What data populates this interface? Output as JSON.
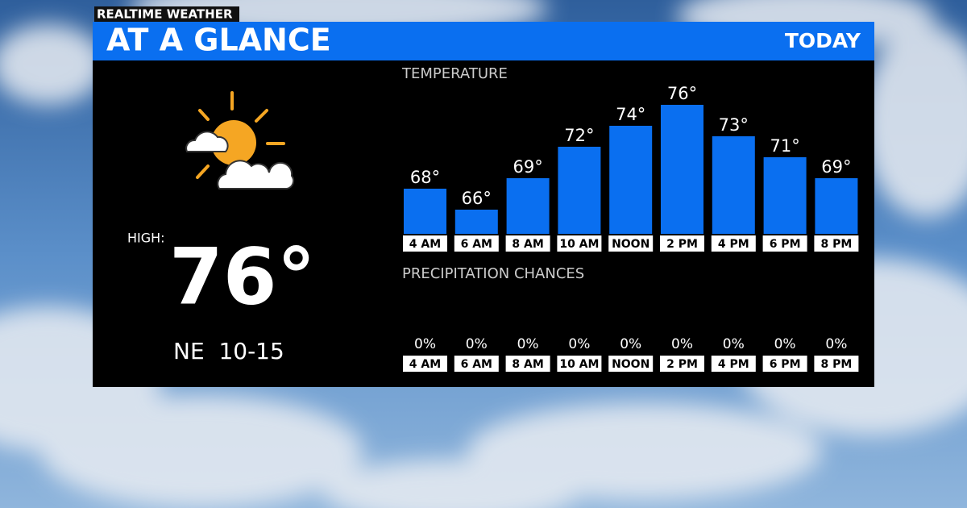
{
  "header": {
    "brand": "REALTIME WEATHER",
    "title": "AT A GLANCE",
    "period": "TODAY"
  },
  "summary": {
    "high_label": "HIGH:",
    "high": "76°",
    "wind": "NE  10-15"
  },
  "chart_data": [
    {
      "type": "bar",
      "title": "TEMPERATURE",
      "color": "#0a6ff0",
      "categories": [
        "4 AM",
        "6 AM",
        "8 AM",
        "10 AM",
        "NOON",
        "2 PM",
        "4 PM",
        "6 PM",
        "8 PM"
      ],
      "values": [
        68,
        66,
        69,
        72,
        74,
        76,
        73,
        71,
        69
      ],
      "value_labels": [
        "68°",
        "66°",
        "69°",
        "72°",
        "74°",
        "76°",
        "73°",
        "71°",
        "69°"
      ]
    },
    {
      "type": "bar",
      "title": "PRECIPITATION CHANCES",
      "color": "#0a6ff0",
      "categories": [
        "4 AM",
        "6 AM",
        "8 AM",
        "10 AM",
        "NOON",
        "2 PM",
        "4 PM",
        "6 PM",
        "8 PM"
      ],
      "values": [
        0,
        0,
        0,
        0,
        0,
        0,
        0,
        0,
        0
      ],
      "value_labels": [
        "0%",
        "0%",
        "0%",
        "0%",
        "0%",
        "0%",
        "0%",
        "0%",
        "0%"
      ]
    }
  ]
}
